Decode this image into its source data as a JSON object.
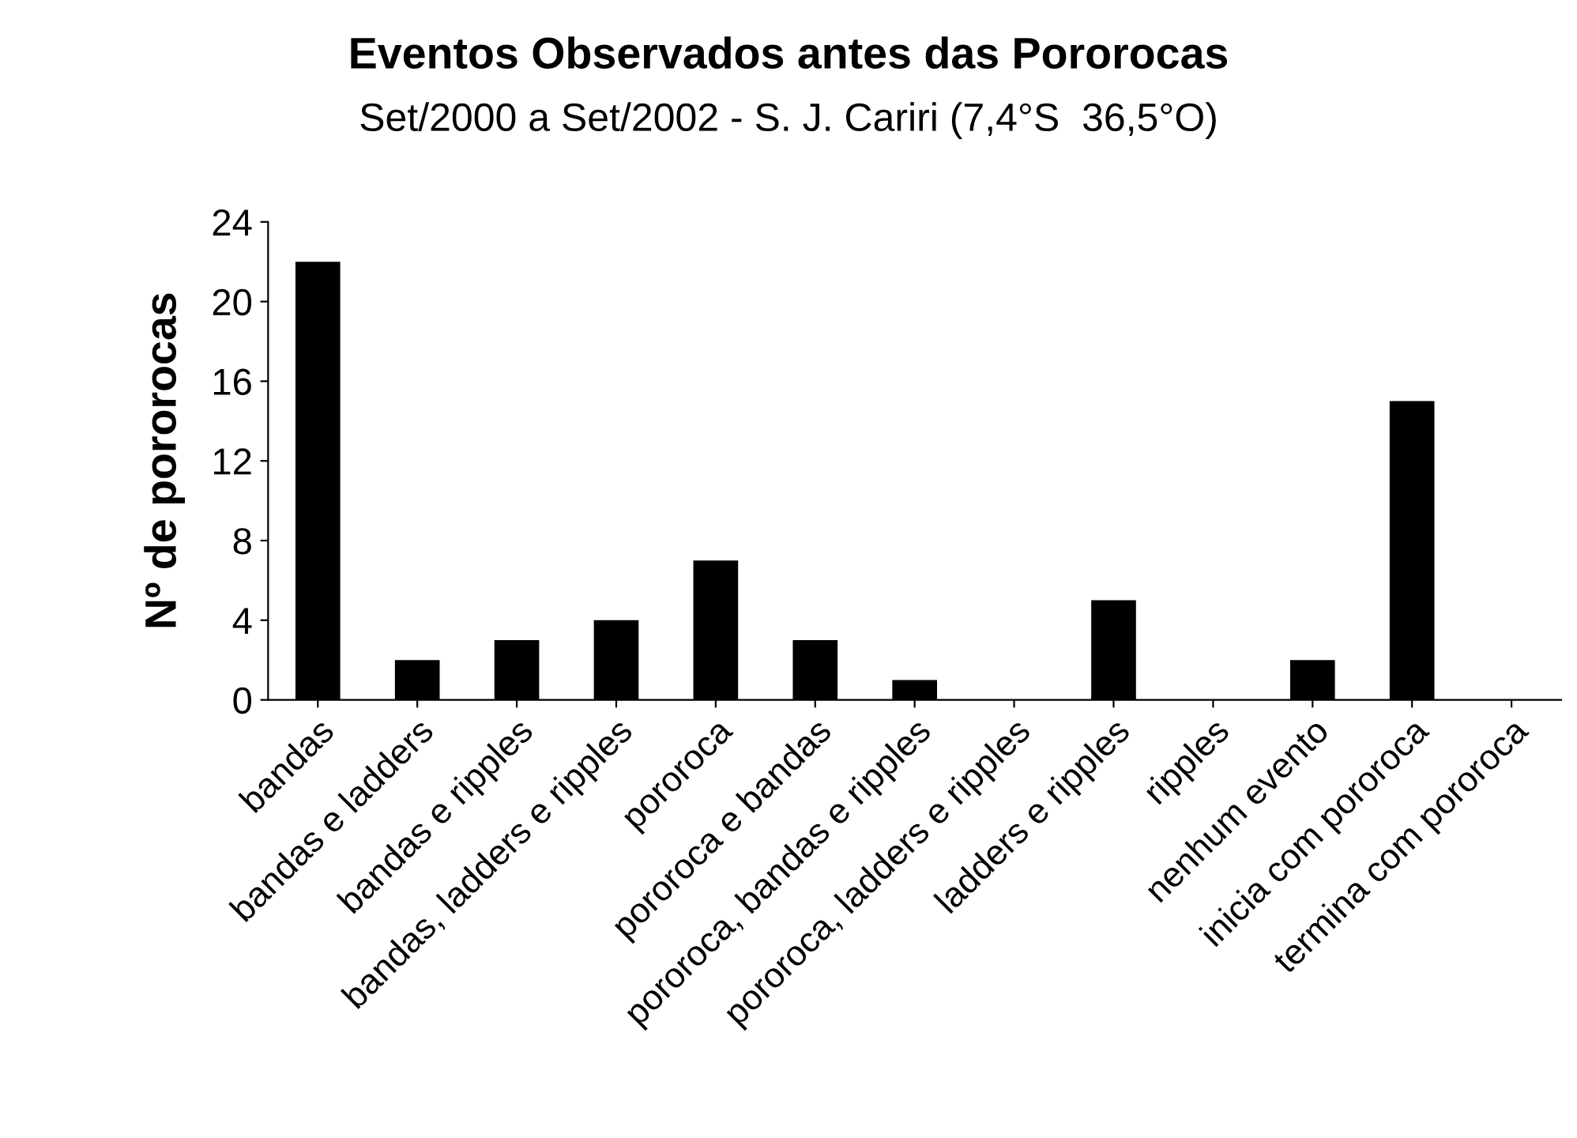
{
  "chart_data": {
    "type": "bar",
    "title": "Eventos Observados antes das Pororocas",
    "subtitle": "Set/2000 a Set/2002 - S. J. Cariri (7,4°S  36,5°O)",
    "ylabel": "Nº de pororocas",
    "categories": [
      "bandas",
      "bandas e ladders",
      "bandas e ripples",
      "bandas, ladders e ripples",
      "pororoca",
      "pororoca e bandas",
      "pororoca, bandas e ripples",
      "pororoca, ladders e ripples",
      "ladders e ripples",
      "ripples",
      "nenhum evento",
      "inicia com pororoca",
      "termina com pororoca"
    ],
    "values": [
      22,
      2,
      3,
      4,
      7,
      3,
      1,
      0,
      5,
      0,
      2,
      15,
      0
    ],
    "color": "#000000",
    "ylim": [
      0,
      24
    ],
    "yticks": [
      0,
      4,
      8,
      12,
      16,
      20,
      24
    ],
    "grid": false
  }
}
